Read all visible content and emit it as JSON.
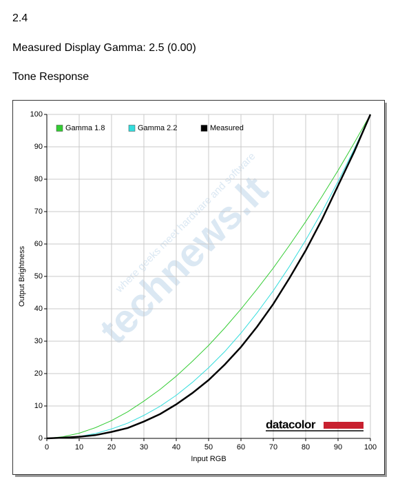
{
  "header": {
    "section": "2.4",
    "measured_gamma": "Measured Display Gamma: 2.5 (0.00)",
    "chart_heading": "Tone Response"
  },
  "chart_data": {
    "type": "line",
    "x_label": "Input RGB",
    "y_label": "Output Brightness",
    "x": [
      0,
      5,
      10,
      15,
      20,
      25,
      30,
      35,
      40,
      45,
      50,
      55,
      60,
      65,
      70,
      75,
      80,
      85,
      90,
      95,
      100
    ],
    "series": [
      {
        "name": "Gamma 1.8",
        "color": "#33cc33",
        "width": 1,
        "values": [
          0,
          0.5,
          1.6,
          3.3,
          5.5,
          8.2,
          11.5,
          15.1,
          19.2,
          23.8,
          28.7,
          34.1,
          39.9,
          46.1,
          52.6,
          59.6,
          66.9,
          74.6,
          82.7,
          91.2,
          100
        ]
      },
      {
        "name": "Gamma 2.2",
        "color": "#33dddd",
        "width": 1,
        "values": [
          0,
          0.1,
          0.6,
          1.5,
          2.9,
          4.7,
          7.1,
          9.9,
          13.3,
          17.3,
          21.8,
          26.8,
          32.5,
          38.8,
          45.6,
          53.1,
          61.2,
          69.9,
          79.3,
          89.3,
          100
        ]
      },
      {
        "name": "Measured",
        "color": "#000000",
        "width": 2.5,
        "values": [
          0,
          0.2,
          0.5,
          1,
          2,
          3.2,
          5.2,
          7.5,
          10.5,
          14,
          18,
          22.8,
          28.2,
          34.5,
          41.5,
          49.5,
          58,
          67.5,
          78,
          88.5,
          100
        ]
      }
    ],
    "xlim": [
      0,
      100
    ],
    "ylim": [
      0,
      100
    ],
    "xticks": [
      0,
      10,
      20,
      30,
      40,
      50,
      60,
      70,
      80,
      90,
      100
    ],
    "yticks": [
      0,
      10,
      20,
      30,
      40,
      50,
      60,
      70,
      80,
      90,
      100
    ],
    "grid": true,
    "legend": "top-left",
    "watermark": "technews.lt",
    "watermark_tagline": "where geeks meet hardware and software",
    "logo": "datacolor"
  }
}
